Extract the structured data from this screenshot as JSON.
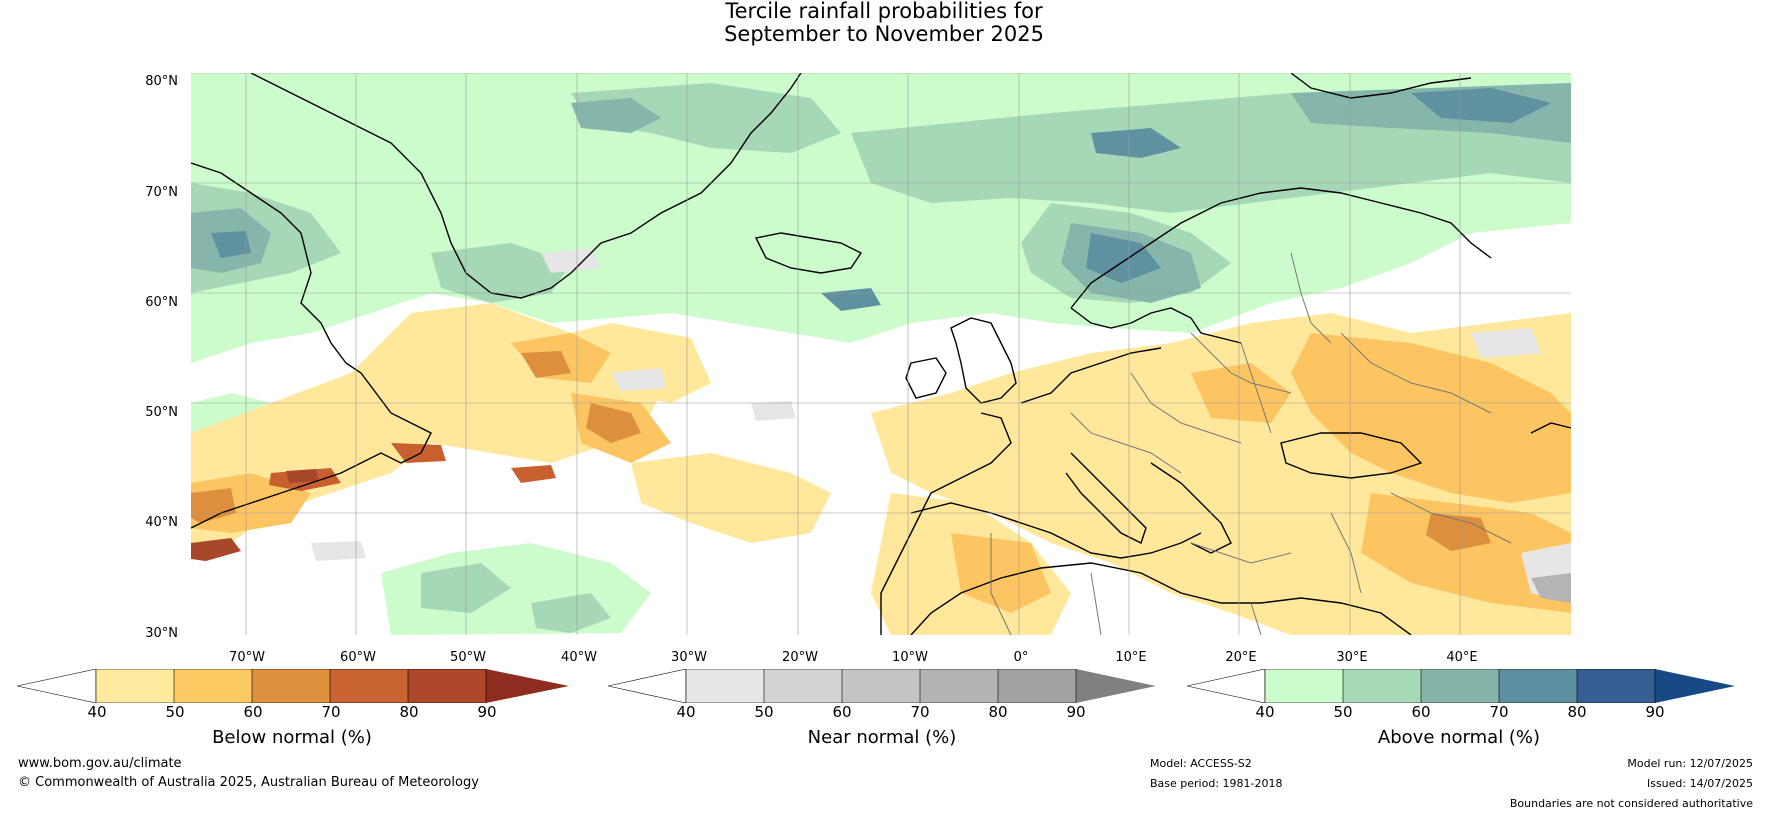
{
  "title": {
    "line1": "Tercile rainfall probabilities for",
    "line2": "September to November 2025"
  },
  "map": {
    "lat_labels": [
      "80°N",
      "70°N",
      "60°N",
      "50°N",
      "40°N",
      "30°N"
    ],
    "lon_labels": [
      "70°W",
      "60°W",
      "50°W",
      "40°W",
      "30°W",
      "20°W",
      "10°W",
      "0°",
      "10°E",
      "20°E",
      "30°E",
      "40°E"
    ],
    "colors": {
      "ocean_land_base": "#ffffff",
      "above_40": "#ccfccc",
      "above_50": "#a6d8b8",
      "above_60": "#85b5ab",
      "above_70": "#5f91a1",
      "above_80": "#335f93",
      "below_40": "#ffe89c",
      "below_50": "#fdc562",
      "below_60": "#dd8f3d",
      "below_70": "#c75f2f",
      "below_80": "#a6472b",
      "near_40": "#e6e6e6",
      "near_70": "#b5b5b5",
      "coast": "#000000",
      "border": "#777777",
      "grid": "#9a9a9a"
    }
  },
  "colorbars": [
    {
      "name": "below",
      "label": "Below normal (%)",
      "ticks": [
        "40",
        "50",
        "60",
        "70",
        "80",
        "90"
      ],
      "colors": [
        "#ffffff",
        "#ffeaa0",
        "#fdc963",
        "#de903f",
        "#c96331",
        "#ae482a",
        "#8e2c1f"
      ]
    },
    {
      "name": "near",
      "label": "Near normal (%)",
      "ticks": [
        "40",
        "50",
        "60",
        "70",
        "80",
        "90"
      ],
      "colors": [
        "#ffffff",
        "#e6e6e6",
        "#d3d3d3",
        "#c4c4c4",
        "#b4b4b4",
        "#a2a2a2",
        "#808080"
      ]
    },
    {
      "name": "above",
      "label": "Above normal (%)",
      "ticks": [
        "40",
        "50",
        "60",
        "70",
        "80",
        "90"
      ],
      "colors": [
        "#ffffff",
        "#ccfccc",
        "#a7d9b7",
        "#86b4ab",
        "#5c8fa0",
        "#355f93",
        "#174a84"
      ]
    }
  ],
  "footer": {
    "website": "www.bom.gov.au/climate",
    "copyright": "© Commonwealth of Australia 2025, Australian Bureau of Meteorology",
    "model": "Model: ACCESS-S2",
    "base_period": "Base period: 1981-2018",
    "model_run": "Model run: 12/07/2025",
    "issued": "Issued: 14/07/2025",
    "disclaimer": "Boundaries are not considered authoritative"
  }
}
